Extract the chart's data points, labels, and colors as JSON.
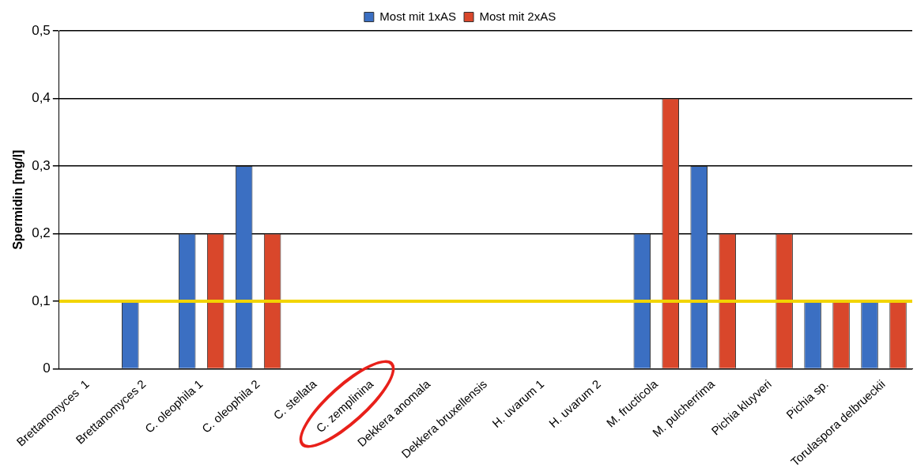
{
  "chart_data": {
    "type": "bar",
    "ylabel": "Spermidin [mg/l]",
    "categories": [
      "Brettanomyces  1",
      "Brettanomyces 2",
      "C. oleophila 1",
      "C. oleophila 2",
      "C. stellata",
      "C. zemplinina",
      "Dekkera anomala",
      "Dekkera bruxellensis",
      "H. uvarum 1",
      "H. uvarum 2",
      "M. fructicola",
      "M. pulcherrima",
      "Pichia kluyveri",
      "Pichia sp.",
      "Torulaspora delbrueckii"
    ],
    "series": [
      {
        "name": "Most mit 1xAS",
        "color": "#3b6fc2",
        "values": [
          0,
          0.1,
          0.2,
          0.3,
          0,
          0,
          0,
          0,
          0,
          0,
          0.2,
          0.3,
          0,
          0.1,
          0.1
        ]
      },
      {
        "name": "Most mit 2xAS",
        "color": "#d9472b",
        "values": [
          0,
          0,
          0.2,
          0.2,
          0,
          0,
          0,
          0,
          0,
          0,
          0.4,
          0.2,
          0.2,
          0.1,
          0.1
        ]
      }
    ],
    "ylim": [
      0,
      0.5
    ],
    "yticks": [
      0,
      {
        "value": 0.1,
        "label": "0,1"
      },
      {
        "value": 0.2,
        "label": "0,2"
      },
      {
        "value": 0.3,
        "label": "0,3"
      },
      {
        "value": 0.4,
        "label": "0,4"
      },
      {
        "value": 0.5,
        "label": "0,5"
      }
    ],
    "ref_lines": [
      {
        "axis": "y",
        "value": 0.1,
        "color": "#f2d400"
      }
    ],
    "grid": "y",
    "legend": "top"
  }
}
